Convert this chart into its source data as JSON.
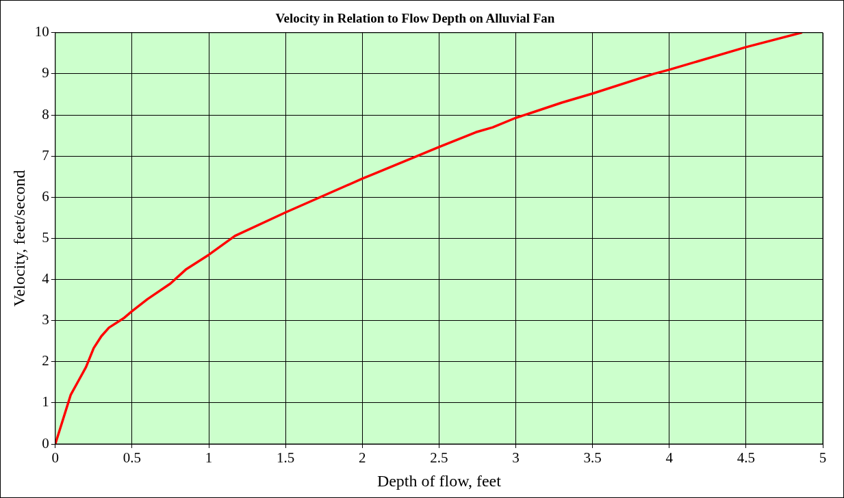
{
  "chart_data": {
    "type": "line",
    "title": "Velocity in Relation to Flow Depth on Alluvial Fan",
    "xlabel": "Depth of flow, feet",
    "ylabel": "Velocity, feet/second",
    "xlim": [
      0,
      5
    ],
    "xticks": [
      0,
      0.5,
      1,
      1.5,
      2,
      2.5,
      3,
      3.5,
      4,
      4.5,
      5
    ],
    "ylim": [
      0,
      10
    ],
    "yticks": [
      0,
      1,
      2,
      3,
      4,
      5,
      6,
      7,
      8,
      9,
      10
    ],
    "grid": true,
    "legend": false,
    "marker": "none",
    "line_style": "solid",
    "series": [
      {
        "color": "#ff0000",
        "x": [
          0,
          0.027,
          0.1,
          0.15,
          0.2,
          0.25,
          0.3,
          0.35,
          0.45,
          0.5,
          0.6,
          0.75,
          0.85,
          1,
          1.17,
          1.5,
          2,
          2.5,
          2.74,
          2.85,
          3,
          3.1,
          3.3,
          3.5,
          3.9,
          4,
          4.5,
          4.86
        ],
        "values": [
          0,
          0.32,
          1.19,
          1.53,
          1.87,
          2.33,
          2.62,
          2.83,
          3.07,
          3.23,
          3.52,
          3.9,
          4.24,
          4.6,
          5.06,
          5.63,
          6.45,
          7.22,
          7.58,
          7.7,
          7.93,
          8.05,
          8.3,
          8.52,
          9.0,
          9.1,
          9.65,
          10.0
        ]
      }
    ]
  }
}
